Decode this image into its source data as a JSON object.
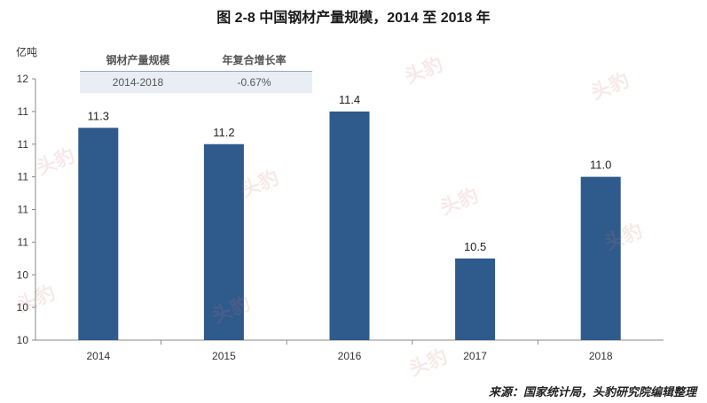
{
  "title": "图 2-8  中国钢材产量规模，2014 至 2018 年",
  "source": "来源：国家统计局，头豹研究院编辑整理",
  "watermark": "头豹",
  "inset_table": {
    "headers": [
      "钢材产量规模",
      "年复合增长率"
    ],
    "row": [
      "2014-2018",
      "-0.67%"
    ]
  },
  "colors": {
    "bar": "#2e5a8c",
    "axis": "#888888",
    "inset_bg": "#e9eef5"
  },
  "chart_data": {
    "type": "bar",
    "ylabel": "亿吨",
    "categories": [
      "2014",
      "2015",
      "2016",
      "2017",
      "2018"
    ],
    "values": [
      11.3,
      11.2,
      11.4,
      10.5,
      11.0
    ],
    "data_labels": [
      "11.3",
      "11.2",
      "11.4",
      "10.5",
      "11.0"
    ],
    "y_ticks": [
      {
        "value": 10.0,
        "label": "10"
      },
      {
        "value": 10.2,
        "label": "10"
      },
      {
        "value": 10.4,
        "label": "10"
      },
      {
        "value": 10.6,
        "label": "11"
      },
      {
        "value": 10.8,
        "label": "11"
      },
      {
        "value": 11.0,
        "label": "11"
      },
      {
        "value": 11.2,
        "label": "11"
      },
      {
        "value": 11.4,
        "label": "11"
      },
      {
        "value": 11.6,
        "label": "12"
      }
    ],
    "ylim": [
      10.0,
      11.6
    ],
    "grid": false,
    "legend": "none"
  }
}
